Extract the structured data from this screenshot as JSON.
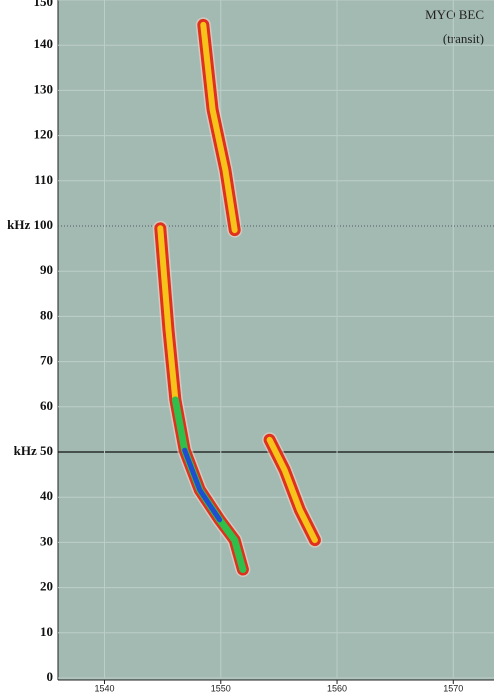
{
  "chart_data": {
    "type": "line",
    "annotations": [
      "MYO BEC",
      "(transit)"
    ],
    "xlim": [
      1536,
      1573.5
    ],
    "xticks": [
      1540,
      1550,
      1560,
      1570
    ],
    "ylim": [
      0,
      150
    ],
    "yticks": [
      0,
      10,
      20,
      30,
      40,
      {
        "value": 50,
        "label": "kHz 50"
      },
      60,
      70,
      80,
      90,
      {
        "value": 100,
        "label": "kHz 100"
      },
      110,
      120,
      130,
      140,
      150
    ],
    "grid": true,
    "series": [
      {
        "color": "#e0301e",
        "x": [
          1544.8,
          1545.5,
          1546.1,
          1546.9,
          1548.2,
          1549.9,
          1551.2,
          1551.9
        ],
        "values": [
          99.5,
          77,
          61.5,
          50.4,
          41.6,
          35,
          30.5,
          24
        ]
      },
      {
        "color": "#e0301e",
        "x": [
          1548.5,
          1549.3,
          1550.4,
          1551.2
        ],
        "values": [
          144.5,
          125.7,
          112.4,
          99.1
        ]
      },
      {
        "color": "#e0301e",
        "x": [
          1554.2,
          1555.5,
          1556.8,
          1558.1
        ],
        "values": [
          52.7,
          46,
          37.2,
          30.5
        ]
      }
    ]
  }
}
